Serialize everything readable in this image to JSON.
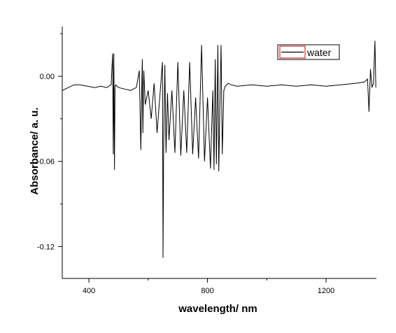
{
  "chart_data": {
    "type": "line",
    "title": "",
    "xlabel": "wavelength/ nm",
    "ylabel": "Absorbance/ a. u.",
    "xlim": [
      310,
      1370
    ],
    "ylim": [
      -0.1425,
      0.035
    ],
    "x_ticks": [
      400,
      800,
      1200
    ],
    "x_tick_labels": [
      "400",
      "800",
      "1200"
    ],
    "x_minor_ticks": [
      600,
      1000
    ],
    "y_ticks": [
      0.0,
      -0.06,
      -0.12
    ],
    "y_tick_labels": [
      "0.00",
      "-0.06",
      "-0.12"
    ],
    "y_minor_ticks": [
      0.03,
      -0.03,
      -0.09
    ],
    "grid": false,
    "legend_position": "top-right",
    "colors": {
      "line": "#000000",
      "legend_border": "#cc0000",
      "axis": "#000000"
    },
    "series": [
      {
        "name": "water",
        "x": [
          310,
          330,
          350,
          370,
          395,
          420,
          440,
          460,
          475,
          480,
          482,
          484,
          486,
          488,
          490,
          500,
          520,
          540,
          560,
          570,
          575,
          578,
          580,
          582,
          585,
          590,
          600,
          610,
          620,
          630,
          640,
          648,
          650,
          652,
          656,
          660,
          665,
          670,
          680,
          690,
          700,
          710,
          720,
          730,
          740,
          750,
          760,
          770,
          780,
          790,
          800,
          810,
          818,
          822,
          826,
          830,
          835,
          838,
          842,
          846,
          850,
          855,
          860,
          870,
          880,
          900,
          950,
          1000,
          1050,
          1100,
          1150,
          1200,
          1250,
          1300,
          1330,
          1340,
          1345,
          1350,
          1355,
          1360,
          1365,
          1368
        ],
        "y": [
          -0.01,
          -0.008,
          -0.006,
          -0.006,
          -0.007,
          -0.008,
          -0.007,
          -0.008,
          -0.006,
          0.016,
          -0.055,
          0.016,
          -0.066,
          -0.008,
          -0.006,
          -0.008,
          -0.009,
          -0.01,
          -0.008,
          0.004,
          -0.052,
          -0.01,
          0.012,
          -0.04,
          0.004,
          -0.02,
          -0.01,
          -0.03,
          -0.005,
          -0.04,
          -0.012,
          0.01,
          -0.128,
          -0.05,
          0.008,
          -0.054,
          -0.012,
          -0.045,
          -0.01,
          -0.054,
          0.01,
          -0.056,
          -0.01,
          -0.054,
          0.01,
          -0.055,
          -0.015,
          -0.058,
          0.022,
          -0.06,
          -0.015,
          -0.065,
          -0.01,
          -0.066,
          0.012,
          -0.062,
          0.022,
          -0.067,
          -0.02,
          0.022,
          -0.055,
          -0.01,
          -0.007,
          -0.005,
          -0.006,
          -0.007,
          -0.006,
          -0.007,
          -0.006,
          -0.007,
          -0.006,
          -0.007,
          -0.006,
          -0.005,
          -0.004,
          -0.002,
          -0.025,
          0.005,
          -0.008,
          -0.005,
          0.025,
          -0.008
        ]
      }
    ]
  }
}
